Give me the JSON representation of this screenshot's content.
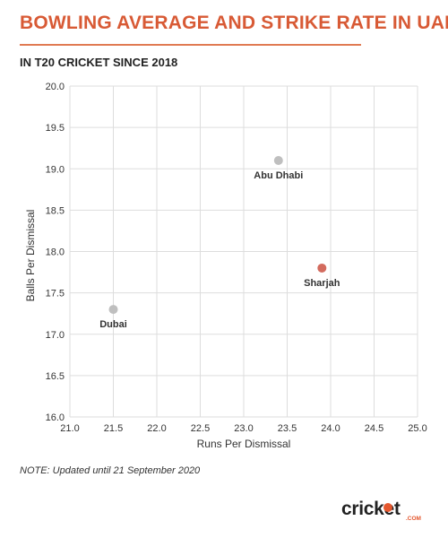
{
  "header": {
    "title": "BOWLING AVERAGE AND STRIKE RATE IN UAE",
    "subtitle": "IN T20 CRICKET SINCE 2018"
  },
  "note": "NOTE: Updated until 21 September 2020",
  "logo": {
    "text": "cricket",
    "suffix": ".COM",
    "ball_icon": "cricket-ball-icon"
  },
  "colors": {
    "title": "#d85a35",
    "highlight_point": "#d36b5e",
    "default_point": "#bfbfbf",
    "grid": "#dddddd"
  },
  "chart_data": {
    "type": "scatter",
    "title": "BOWLING AVERAGE AND STRIKE RATE IN UAE",
    "subtitle": "IN T20 CRICKET SINCE 2018",
    "xlabel": "Runs Per Dismissal",
    "ylabel": "Balls Per Dismissal",
    "xlim": [
      21.0,
      25.0
    ],
    "ylim": [
      16.0,
      20.0
    ],
    "xticks": [
      "21.0",
      "21.5",
      "22.0",
      "22.5",
      "23.0",
      "23.5",
      "24.0",
      "24.5",
      "25.0"
    ],
    "yticks": [
      "16.0",
      "16.5",
      "17.0",
      "17.5",
      "18.0",
      "18.5",
      "19.0",
      "19.5",
      "20.0"
    ],
    "grid": true,
    "points": [
      {
        "label": "Dubai",
        "x": 21.5,
        "y": 17.3,
        "highlight": false
      },
      {
        "label": "Abu Dhabi",
        "x": 23.4,
        "y": 19.1,
        "highlight": false
      },
      {
        "label": "Sharjah",
        "x": 23.9,
        "y": 17.8,
        "highlight": true
      }
    ]
  }
}
